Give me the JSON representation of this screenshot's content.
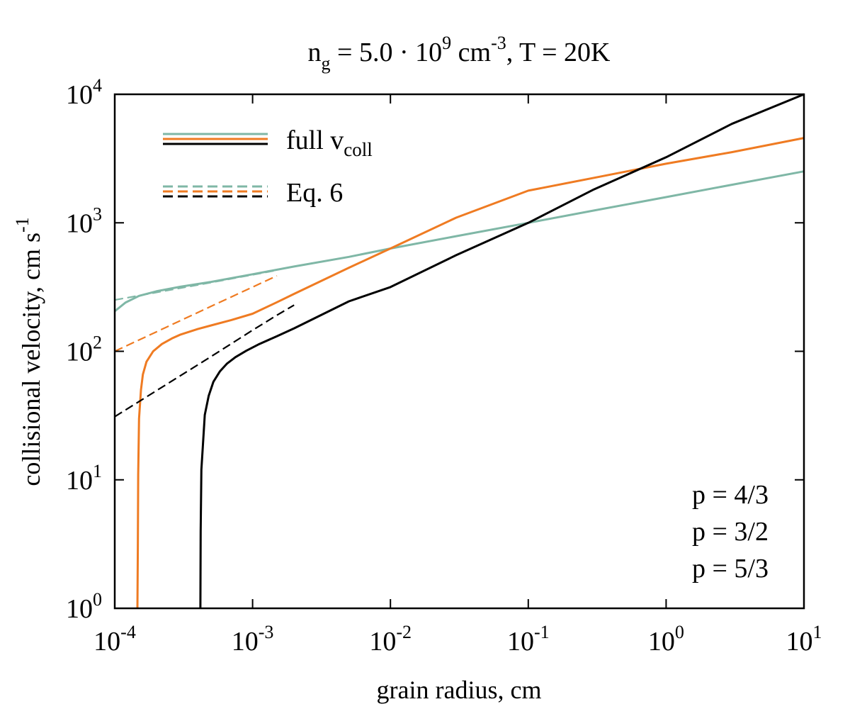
{
  "chart_data": {
    "type": "line",
    "title": {
      "base": "n",
      "base_sub": "g",
      "mid": " = 5.0 · 10",
      "mid_sup": "9",
      "unit": " cm",
      "unit_sup": "-3",
      "tail": ", T =  20K"
    },
    "xlabel": "grain radius, cm",
    "ylabel": {
      "text": "collisional velocity, cm s",
      "sup": "-1"
    },
    "xscale": "log",
    "yscale": "log",
    "xlim": [
      0.0001,
      10
    ],
    "ylim": [
      1,
      10000
    ],
    "x_ticks": [
      {
        "value": 0.0001,
        "base": "10",
        "exp": "-4"
      },
      {
        "value": 0.001,
        "base": "10",
        "exp": "-3"
      },
      {
        "value": 0.01,
        "base": "10",
        "exp": "-2"
      },
      {
        "value": 0.1,
        "base": "10",
        "exp": "-1"
      },
      {
        "value": 1,
        "base": "10",
        "exp": "0"
      },
      {
        "value": 10,
        "base": "10",
        "exp": "1"
      }
    ],
    "y_ticks": [
      {
        "value": 1,
        "base": "10",
        "exp": "0"
      },
      {
        "value": 10,
        "base": "10",
        "exp": "1"
      },
      {
        "value": 100,
        "base": "10",
        "exp": "2"
      },
      {
        "value": 1000,
        "base": "10",
        "exp": "3"
      },
      {
        "value": 10000,
        "base": "10",
        "exp": "4"
      }
    ],
    "grid": false,
    "legend": {
      "placement": "top-left",
      "entries": [
        {
          "label": "full v",
          "label_sub": "coll",
          "style": "solid"
        },
        {
          "label": "Eq. 6",
          "label_sub": "",
          "style": "dashed"
        }
      ]
    },
    "series": [
      {
        "p": "p = 4/3",
        "style": "solid",
        "color": "#7fb7a6",
        "x": [
          0.0001,
          0.00012,
          0.00015,
          0.0002,
          0.0003,
          0.0005,
          0.001,
          0.002,
          0.005,
          0.01,
          0.03,
          0.1,
          0.3,
          1,
          3,
          10
        ],
        "y": [
          205,
          240,
          270,
          293,
          318,
          347,
          398,
          457,
          543,
          631,
          787,
          1000,
          1247,
          1585,
          1976,
          2512
        ]
      },
      {
        "p": "p = 4/3",
        "style": "dashed",
        "color": "#7fb7a6",
        "x": [
          0.0001,
          0.0005,
          0.0015
        ],
        "y": [
          251,
          343,
          427
        ]
      },
      {
        "p": "p = 3/2",
        "style": "solid",
        "color": "#ef7b22",
        "x": [
          0.000146,
          0.000147,
          0.000148,
          0.00015,
          0.000155,
          0.00016,
          0.00017,
          0.00019,
          0.00022,
          0.00026,
          0.0003,
          0.0004,
          0.0005,
          0.0007,
          0.001,
          0.0015,
          0.002,
          0.005,
          0.01,
          0.03,
          0.1,
          0.3,
          1,
          3,
          10
        ],
        "y": [
          1,
          3,
          11,
          30,
          50,
          66,
          83,
          100,
          114,
          126,
          135,
          149,
          159,
          175,
          196,
          241,
          280,
          447,
          631,
          1096,
          1778,
          2239,
          2884,
          3548,
          4571
        ]
      },
      {
        "p": "p = 3/2",
        "style": "dashed",
        "color": "#ef7b22",
        "x": [
          0.0001,
          0.0005,
          0.001,
          0.0015
        ],
        "y": [
          100,
          224,
          316,
          387
        ]
      },
      {
        "p": "p = 5/3",
        "style": "solid",
        "color": "#000000",
        "x": [
          0.000418,
          0.00042,
          0.000425,
          0.000435,
          0.00045,
          0.00048,
          0.00052,
          0.00058,
          0.00065,
          0.00075,
          0.0009,
          0.0011,
          0.0015,
          0.002,
          0.005,
          0.01,
          0.03,
          0.1,
          0.3,
          1,
          3,
          10
        ],
        "y": [
          1,
          4,
          12,
          18,
          32,
          45,
          58,
          70,
          80,
          90,
          101,
          113,
          131,
          151,
          245,
          316,
          560,
          1000,
          1820,
          3236,
          5888,
          10000
        ]
      },
      {
        "p": "p = 5/3",
        "style": "dashed",
        "color": "#000000",
        "x": [
          0.0001,
          0.0005,
          0.001,
          0.0015,
          0.002
        ],
        "y": [
          31,
          91,
          146,
          191,
          229
        ]
      }
    ],
    "annotations": [
      {
        "text": "p = 4/3",
        "color": "#7fb7a6"
      },
      {
        "text": "p = 3/2",
        "color": "#ef7b22"
      },
      {
        "text": "p = 5/3",
        "color": "#000000"
      }
    ]
  }
}
